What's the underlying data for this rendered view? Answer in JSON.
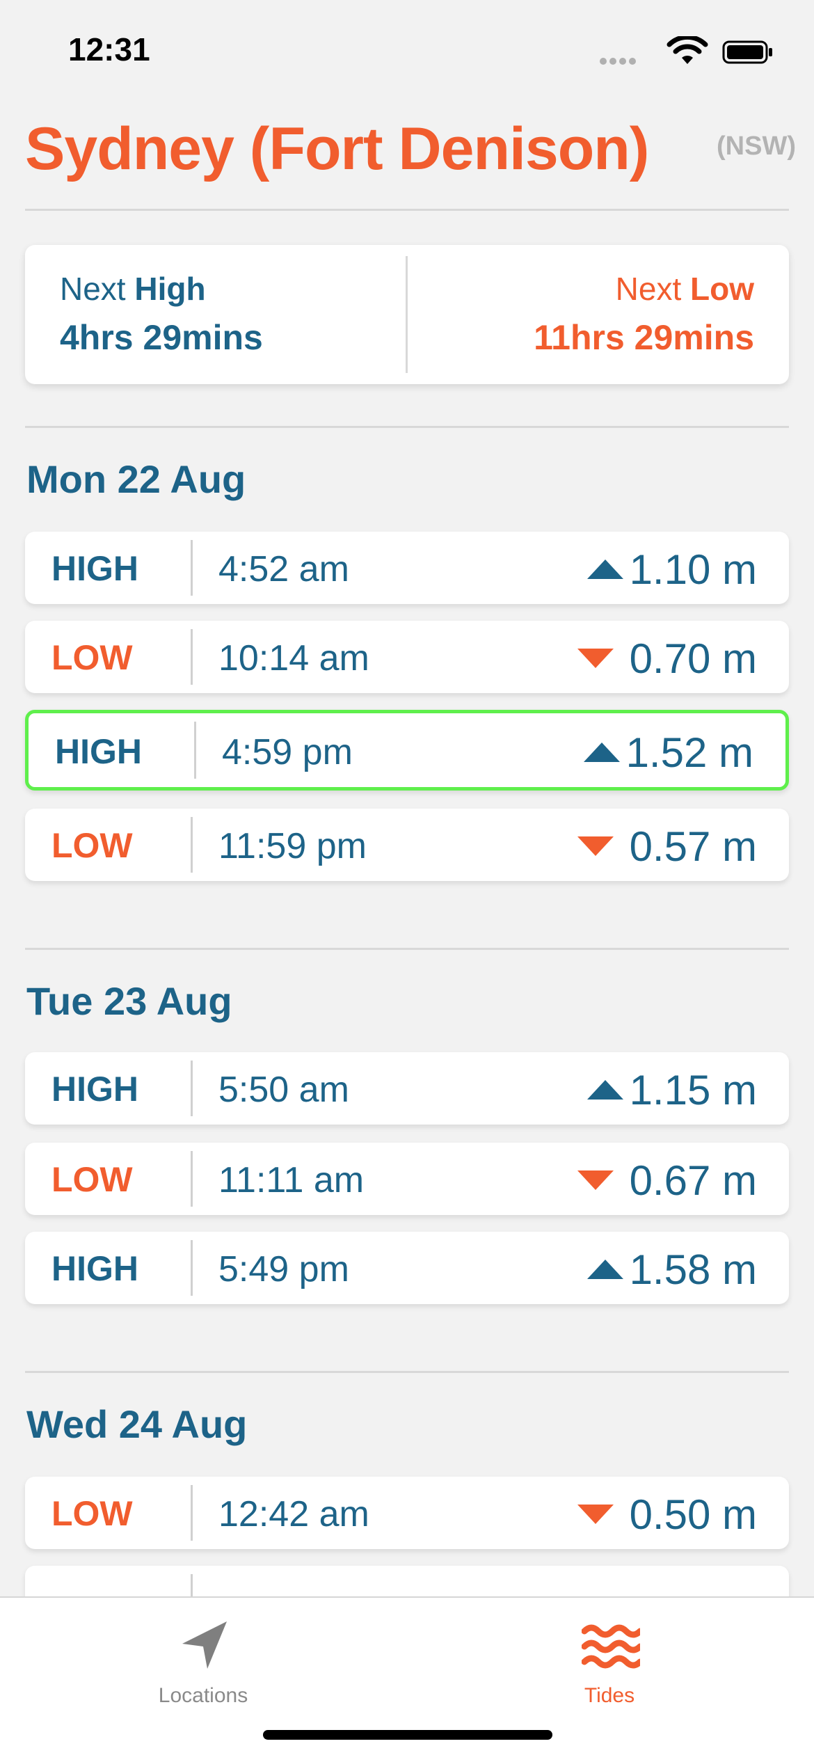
{
  "status_bar": {
    "time": "12:31"
  },
  "location": {
    "name": "Sydney (Fort Denison)",
    "state": "(NSW)"
  },
  "next": {
    "high": {
      "prefix": "Next ",
      "kind": "High",
      "countdown": "4hrs 29mins"
    },
    "low": {
      "prefix": "Next ",
      "kind": "Low",
      "countdown": "11hrs 29mins"
    }
  },
  "days": [
    {
      "heading": "Mon 22 Aug",
      "tides": [
        {
          "type": "HIGH",
          "time": "4:52 am",
          "height": "1.10 m"
        },
        {
          "type": "LOW",
          "time": "10:14 am",
          "height": "0.70 m"
        },
        {
          "type": "HIGH",
          "time": "4:59 pm",
          "height": "1.52 m",
          "current": true
        },
        {
          "type": "LOW",
          "time": "11:59 pm",
          "height": "0.57 m"
        }
      ]
    },
    {
      "heading": "Tue 23 Aug",
      "tides": [
        {
          "type": "HIGH",
          "time": "5:50 am",
          "height": "1.15 m"
        },
        {
          "type": "LOW",
          "time": "11:11 am",
          "height": "0.67 m"
        },
        {
          "type": "HIGH",
          "time": "5:49 pm",
          "height": "1.58 m"
        }
      ]
    },
    {
      "heading": "Wed 24 Aug",
      "tides": [
        {
          "type": "LOW",
          "time": "12:42 am",
          "height": "0.50 m"
        }
      ]
    }
  ],
  "tabs": {
    "locations": "Locations",
    "tides": "Tides"
  },
  "colors": {
    "accent": "#f15d2e",
    "primary": "#1d6388",
    "current_outline": "#5fef4c"
  }
}
